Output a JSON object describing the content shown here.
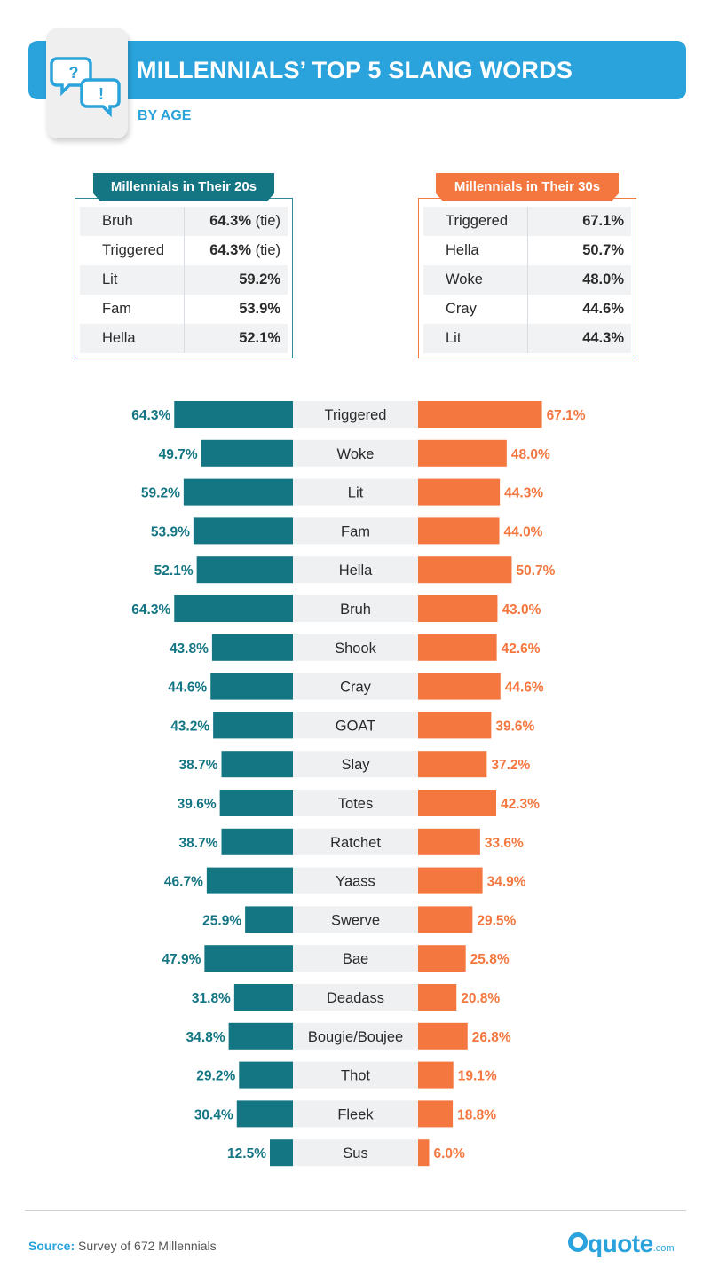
{
  "header": {
    "title": "MILLENNIALS’ TOP 5 SLANG WORDS",
    "subtitle": "BY AGE",
    "icon_left": "?",
    "icon_right": "!"
  },
  "table_20s": {
    "title": "Millennials in Their 20s",
    "rows": [
      {
        "word": "Bruh",
        "value": "64.3%",
        "note": " (tie)"
      },
      {
        "word": "Triggered",
        "value": "64.3%",
        "note": " (tie)"
      },
      {
        "word": "Lit",
        "value": "59.2%",
        "note": ""
      },
      {
        "word": "Fam",
        "value": "53.9%",
        "note": ""
      },
      {
        "word": "Hella",
        "value": "52.1%",
        "note": ""
      }
    ]
  },
  "table_30s": {
    "title": "Millennials in Their 30s",
    "rows": [
      {
        "word": "Triggered",
        "value": "67.1%",
        "note": ""
      },
      {
        "word": "Hella",
        "value": "50.7%",
        "note": ""
      },
      {
        "word": "Woke",
        "value": "48.0%",
        "note": ""
      },
      {
        "word": "Cray",
        "value": "44.6%",
        "note": ""
      },
      {
        "word": "Lit",
        "value": "44.3%",
        "note": ""
      }
    ]
  },
  "chart_data": {
    "type": "bar",
    "orientation": "diverging-horizontal",
    "categories": [
      "Triggered",
      "Woke",
      "Lit",
      "Fam",
      "Hella",
      "Bruh",
      "Shook",
      "Cray",
      "GOAT",
      "Slay",
      "Totes",
      "Ratchet",
      "Yaass",
      "Swerve",
      "Bae",
      "Deadass",
      "Bougie/Boujee",
      "Thot",
      "Fleek",
      "Sus"
    ],
    "series": [
      {
        "side": "left",
        "values": [
          64.3,
          49.7,
          59.2,
          53.9,
          52.1,
          64.3,
          43.8,
          44.6,
          43.2,
          38.7,
          39.6,
          38.7,
          46.7,
          25.9,
          47.9,
          31.8,
          34.8,
          29.2,
          30.4,
          12.5
        ]
      },
      {
        "side": "right",
        "values": [
          67.1,
          48.0,
          44.3,
          44.0,
          50.7,
          43.0,
          42.6,
          44.6,
          39.6,
          37.2,
          42.3,
          33.6,
          34.9,
          29.5,
          25.8,
          20.8,
          26.8,
          19.1,
          18.8,
          6.0
        ]
      }
    ],
    "value_format": "%",
    "colors": {
      "left": "#147583",
      "right": "#f4773f",
      "center_band": "#eef0f2"
    }
  },
  "footer": {
    "source_label": "Source:",
    "source_text": " Survey of 672 Millennials",
    "logo_word": "quote",
    "logo_suffix": ".com"
  },
  "colors": {
    "brand_blue": "#2aa3dc",
    "teal": "#147583",
    "orange": "#f4773f"
  }
}
